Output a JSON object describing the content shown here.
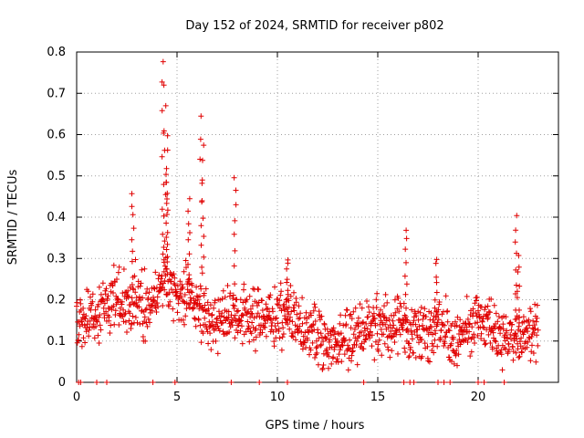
{
  "chart_data": {
    "type": "scatter",
    "title": "Day 152 of 2024, SRMTID for receiver p802",
    "xlabel": "GPS time / hours",
    "ylabel": "SRMTID / TECUs",
    "xlim": [
      0,
      24
    ],
    "ylim": [
      0,
      0.8
    ],
    "xticks": [
      0,
      5,
      10,
      15,
      20
    ],
    "xtick_labels": [
      "0",
      "5",
      "10",
      "15",
      "20"
    ],
    "yticks": [
      0,
      0.1,
      0.2,
      0.3,
      0.4,
      0.5,
      0.6,
      0.7,
      0.8
    ],
    "ytick_labels": [
      "0",
      "0.1",
      "0.2",
      "0.3",
      "0.4",
      "0.5",
      "0.6",
      "0.7",
      "0.8"
    ],
    "grid": true,
    "marker": "+",
    "color": "#e00000",
    "x_range": [
      0,
      23
    ],
    "series": [
      {
        "name": "SRMTID",
        "trend_x": [
          0,
          0.5,
          1,
          1.5,
          2,
          2.5,
          3,
          3.5,
          4,
          4.5,
          5,
          5.5,
          6,
          6.5,
          7,
          7.5,
          8,
          8.5,
          9,
          9.5,
          10,
          10.5,
          11,
          11.5,
          12,
          12.5,
          13,
          13.5,
          14,
          14.5,
          15,
          15.5,
          16,
          16.5,
          17,
          17.5,
          18,
          18.5,
          19,
          19.5,
          20,
          20.5,
          21,
          21.5,
          22,
          22.5,
          23
        ],
        "trend_y": [
          0.16,
          0.15,
          0.16,
          0.19,
          0.2,
          0.19,
          0.21,
          0.18,
          0.22,
          0.25,
          0.2,
          0.22,
          0.19,
          0.16,
          0.15,
          0.16,
          0.17,
          0.15,
          0.15,
          0.16,
          0.15,
          0.16,
          0.14,
          0.12,
          0.1,
          0.1,
          0.11,
          0.1,
          0.12,
          0.13,
          0.14,
          0.13,
          0.14,
          0.12,
          0.13,
          0.12,
          0.13,
          0.12,
          0.11,
          0.12,
          0.15,
          0.14,
          0.11,
          0.1,
          0.12,
          0.13,
          0.14
        ],
        "spikes": [
          {
            "x": 2.8,
            "y": 0.46
          },
          {
            "x": 4.3,
            "y": 0.78
          },
          {
            "x": 4.4,
            "y": 0.72
          },
          {
            "x": 4.5,
            "y": 0.6
          },
          {
            "x": 4.5,
            "y": 0.49
          },
          {
            "x": 5.6,
            "y": 0.44
          },
          {
            "x": 6.2,
            "y": 0.64
          },
          {
            "x": 6.3,
            "y": 0.58
          },
          {
            "x": 7.9,
            "y": 0.5
          },
          {
            "x": 10.5,
            "y": 0.3
          },
          {
            "x": 16.4,
            "y": 0.37
          },
          {
            "x": 17.9,
            "y": 0.3
          },
          {
            "x": 21.9,
            "y": 0.4
          },
          {
            "x": 22.0,
            "y": 0.3
          }
        ],
        "zeros": [
          0.1,
          0.2,
          1.0,
          1.5,
          3.8,
          4.9,
          7.7,
          9.1,
          10.5,
          14.3,
          16.3,
          16.6,
          16.8,
          18.0,
          18.3,
          18.6,
          20.0,
          20.3,
          21.3
        ]
      }
    ]
  }
}
